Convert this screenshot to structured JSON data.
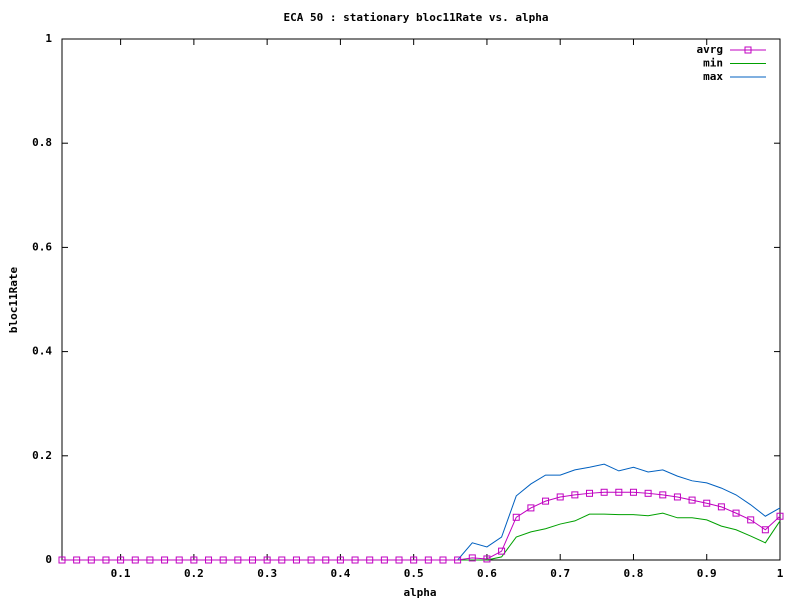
{
  "chart_data": {
    "type": "line",
    "title": "ECA 50 : stationary bloc11Rate vs. alpha",
    "x_label": "alpha",
    "y_label": "bloc11Rate",
    "x": [
      0.02,
      0.04,
      0.06,
      0.08,
      0.1,
      0.12,
      0.14,
      0.16,
      0.18,
      0.2,
      0.22,
      0.24,
      0.26,
      0.28,
      0.3,
      0.32,
      0.34,
      0.36,
      0.38,
      0.4,
      0.42,
      0.44,
      0.46,
      0.48,
      0.5,
      0.52,
      0.54,
      0.56,
      0.58,
      0.6,
      0.62,
      0.64,
      0.66,
      0.68,
      0.7,
      0.72,
      0.74,
      0.76,
      0.78,
      0.8,
      0.82,
      0.84,
      0.86,
      0.88,
      0.9,
      0.92,
      0.94,
      0.96,
      0.98,
      1
    ],
    "series": [
      {
        "name": "avrg",
        "color": "#c000c0",
        "marker": "square",
        "values": [
          0,
          0,
          0,
          0,
          0,
          0,
          0,
          0,
          0,
          0,
          0,
          0,
          0,
          0,
          0,
          0,
          0,
          0,
          0,
          0,
          0,
          0,
          0,
          0,
          0,
          0,
          0,
          0,
          0.004,
          0.002,
          0.017,
          0.082,
          0.1,
          0.113,
          0.121,
          0.125,
          0.128,
          0.13,
          0.13,
          0.13,
          0.128,
          0.125,
          0.121,
          0.115,
          0.109,
          0.102,
          0.09,
          0.077,
          0.058,
          0.084
        ]
      },
      {
        "name": "min",
        "color": "#00a000",
        "values": [
          0,
          0,
          0,
          0,
          0,
          0,
          0,
          0,
          0,
          0,
          0,
          0,
          0,
          0,
          0,
          0,
          0,
          0,
          0,
          0,
          0,
          0,
          0,
          0,
          0,
          0,
          0,
          0,
          0,
          0,
          0.006,
          0.044,
          0.054,
          0.06,
          0.069,
          0.075,
          0.088,
          0.088,
          0.087,
          0.087,
          0.085,
          0.09,
          0.081,
          0.081,
          0.077,
          0.065,
          0.058,
          0.046,
          0.033,
          0.075
        ]
      },
      {
        "name": "max",
        "color": "#0060c0",
        "values": [
          0,
          0,
          0,
          0,
          0,
          0,
          0,
          0,
          0,
          0,
          0,
          0,
          0,
          0,
          0,
          0,
          0,
          0,
          0,
          0,
          0,
          0,
          0,
          0,
          0,
          0,
          0,
          0,
          0.033,
          0.025,
          0.044,
          0.123,
          0.146,
          0.163,
          0.163,
          0.173,
          0.178,
          0.184,
          0.171,
          0.178,
          0.169,
          0.173,
          0.161,
          0.152,
          0.148,
          0.138,
          0.125,
          0.106,
          0.084,
          0.1
        ]
      }
    ],
    "xlim": [
      0.02,
      1
    ],
    "xticks": [
      0.1,
      0.2,
      0.3,
      0.4,
      0.5,
      0.6,
      0.7,
      0.8,
      0.9,
      1
    ],
    "ylim": [
      0,
      1
    ],
    "yticks": [
      0,
      0.2,
      0.4,
      0.6,
      0.8,
      1
    ],
    "legend": "top-right"
  }
}
